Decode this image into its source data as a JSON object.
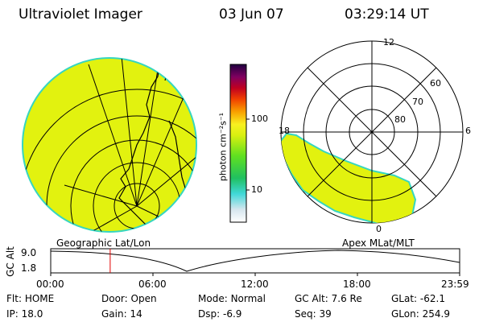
{
  "header": {
    "instrument": "Ultraviolet Imager",
    "date": "03 Jun 07",
    "time": "03:29:14 UT"
  },
  "colorbar": {
    "unit_label": "photon cm⁻²s⁻¹",
    "tick_100": "100",
    "tick_10": "10"
  },
  "geo_panel": {
    "label": "Geographic Lat/Lon"
  },
  "polar_panel": {
    "label": "Apex MLat/MLT",
    "mlt_12": "12",
    "mlt_18": "18",
    "mlt_6": "6",
    "mlt_0": "0",
    "lat_60": "60",
    "lat_70": "70",
    "lat_80": "80"
  },
  "altitude_plot": {
    "ylabel": "GC Alt",
    "y_max": "9.0",
    "y_min": "1.8",
    "x_ticks": [
      "00:00",
      "06:00",
      "12:00",
      "18:00",
      "23:59"
    ],
    "current_time_hours": 3.49
  },
  "info": {
    "flt_label": "Flt:",
    "flt_value": "HOME",
    "ip_label": "IP:",
    "ip_value": "18.0",
    "door_label": "Door:",
    "door_value": "Open",
    "gain_label": "Gain:",
    "gain_value": "14",
    "mode_label": "Mode:",
    "mode_value": "Normal",
    "dsp_label": "Dsp:",
    "dsp_value": "-6.9",
    "gcalt_label": "GC Alt:",
    "gcalt_value": "7.6 Re",
    "seq_label": "Seq:",
    "seq_value": "39",
    "glat_label": "GLat:",
    "glat_value": "-62.1",
    "glon_label": "GLon:",
    "glon_value": "254.9"
  },
  "colors": {
    "fill": "#e2f20f",
    "edge": "#36d6c0",
    "marker": "#e00000"
  }
}
